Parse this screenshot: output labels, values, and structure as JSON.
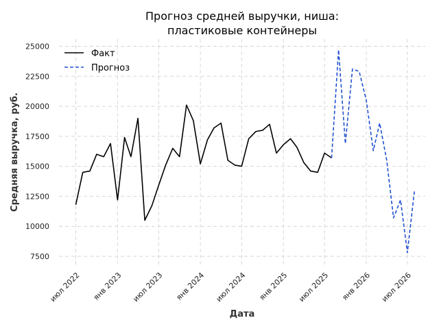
{
  "chart_data": {
    "type": "line",
    "title": [
      "Прогноз средней выручки, ниша:",
      "пластиковые контейнеры"
    ],
    "xlabel": "Дата",
    "ylabel": "Средняя выручка, руб.",
    "x_range": [
      "2022-04-18",
      "2026-09-18"
    ],
    "ylim": [
      6700,
      25600
    ],
    "y_ticks": [
      7500,
      10000,
      12500,
      15000,
      17500,
      20000,
      22500,
      25000
    ],
    "x_ticks": [
      {
        "date": "2022-07-01",
        "label": "июл 2022"
      },
      {
        "date": "2023-01-01",
        "label": "янв 2023"
      },
      {
        "date": "2023-07-01",
        "label": "июл 2023"
      },
      {
        "date": "2024-01-01",
        "label": "янв 2024"
      },
      {
        "date": "2024-07-01",
        "label": "июл 2024"
      },
      {
        "date": "2025-01-01",
        "label": "янв 2025"
      },
      {
        "date": "2025-07-01",
        "label": "июл 2025"
      },
      {
        "date": "2026-01-01",
        "label": "янв 2026"
      },
      {
        "date": "2026-07-01",
        "label": "июл 2026"
      }
    ],
    "grid": true,
    "legend_position": "top-left",
    "series": [
      {
        "name": "Факт",
        "color": "#000000",
        "style": "solid",
        "points": [
          [
            "2022-07-01",
            11800
          ],
          [
            "2022-08-01",
            14500
          ],
          [
            "2022-09-01",
            14600
          ],
          [
            "2022-10-01",
            16000
          ],
          [
            "2022-11-01",
            15800
          ],
          [
            "2022-12-01",
            16900
          ],
          [
            "2023-01-01",
            12200
          ],
          [
            "2023-02-01",
            17400
          ],
          [
            "2023-03-01",
            15800
          ],
          [
            "2023-04-01",
            19000
          ],
          [
            "2023-05-01",
            10500
          ],
          [
            "2023-06-01",
            11700
          ],
          [
            "2023-07-01",
            13400
          ],
          [
            "2023-08-01",
            15100
          ],
          [
            "2023-09-01",
            16500
          ],
          [
            "2023-10-01",
            15800
          ],
          [
            "2023-11-01",
            20100
          ],
          [
            "2023-12-01",
            18800
          ],
          [
            "2024-01-01",
            15200
          ],
          [
            "2024-02-01",
            17200
          ],
          [
            "2024-03-01",
            18200
          ],
          [
            "2024-04-01",
            18600
          ],
          [
            "2024-05-01",
            15500
          ],
          [
            "2024-06-01",
            15100
          ],
          [
            "2024-07-01",
            15000
          ],
          [
            "2024-08-01",
            17300
          ],
          [
            "2024-09-01",
            17900
          ],
          [
            "2024-10-01",
            18000
          ],
          [
            "2024-11-01",
            18500
          ],
          [
            "2024-12-01",
            16100
          ],
          [
            "2025-01-01",
            16800
          ],
          [
            "2025-02-01",
            17300
          ],
          [
            "2025-03-01",
            16600
          ],
          [
            "2025-04-01",
            15300
          ],
          [
            "2025-05-01",
            14600
          ],
          [
            "2025-06-01",
            14500
          ],
          [
            "2025-07-01",
            16100
          ],
          [
            "2025-08-01",
            15700
          ]
        ]
      },
      {
        "name": "Прогноз",
        "color": "#1f4fd1",
        "style": "dashed",
        "points": [
          [
            "2025-08-01",
            15700
          ],
          [
            "2025-09-01",
            24700
          ],
          [
            "2025-10-01",
            16900
          ],
          [
            "2025-11-01",
            23100
          ],
          [
            "2025-12-01",
            22900
          ],
          [
            "2026-01-01",
            20500
          ],
          [
            "2026-02-01",
            16300
          ],
          [
            "2026-03-01",
            18600
          ],
          [
            "2026-04-01",
            15500
          ],
          [
            "2026-05-01",
            10700
          ],
          [
            "2026-06-01",
            12200
          ],
          [
            "2026-07-01",
            7800
          ],
          [
            "2026-08-01",
            12900
          ]
        ]
      }
    ]
  }
}
